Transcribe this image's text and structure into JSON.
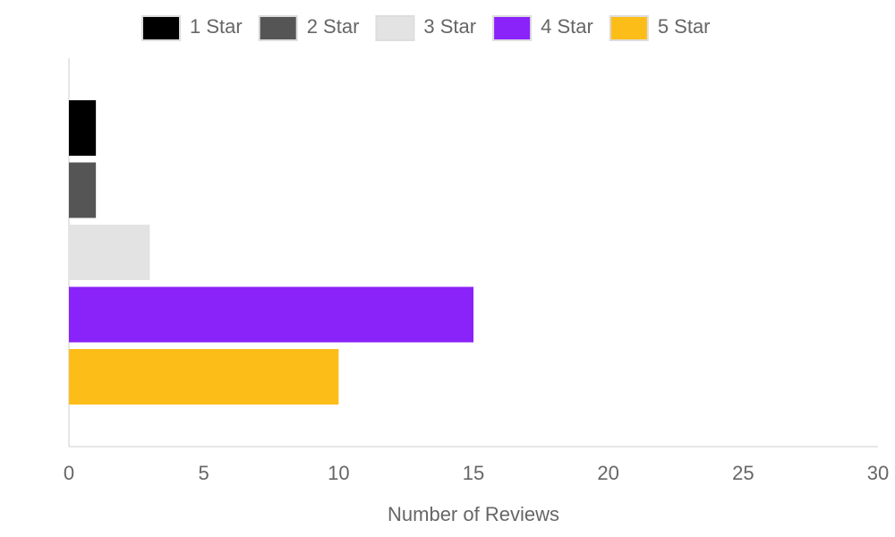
{
  "chart_data": {
    "type": "bar",
    "orientation": "horizontal",
    "categories": [
      null
    ],
    "series": [
      {
        "name": "1 Star",
        "color": "#000000",
        "values": [
          1
        ]
      },
      {
        "name": "2 Star",
        "color": "#555555",
        "values": [
          1
        ]
      },
      {
        "name": "3 Star",
        "color": "#e3e3e3",
        "values": [
          3
        ]
      },
      {
        "name": "4 Star",
        "color": "#8a22fa",
        "values": [
          15
        ]
      },
      {
        "name": "5 Star",
        "color": "#fdbd19",
        "values": [
          10
        ]
      }
    ],
    "x_label": "Number of Reviews",
    "xlim": [
      0,
      30
    ],
    "xticks": [
      0,
      5,
      10,
      15,
      20,
      25,
      30
    ],
    "grid": false,
    "legend": "top"
  }
}
